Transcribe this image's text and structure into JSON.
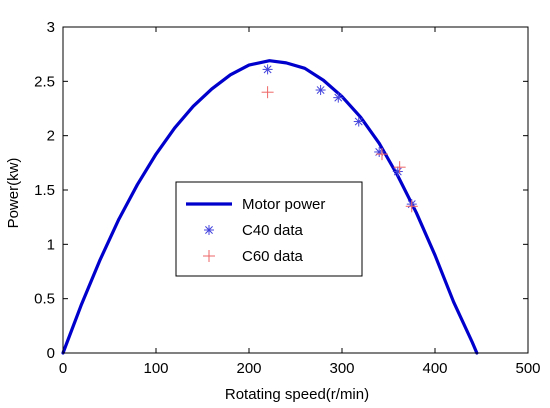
{
  "chart_data": {
    "type": "line",
    "title": "",
    "xlabel": "Rotating speed(r/min)",
    "ylabel": "Power(kw)",
    "xlim": [
      0,
      500
    ],
    "ylim": [
      0,
      3
    ],
    "x_ticks": [
      0,
      100,
      200,
      300,
      400,
      500
    ],
    "y_ticks": [
      0,
      0.5,
      1,
      1.5,
      2,
      2.5,
      3
    ],
    "x_tick_labels": [
      "0",
      "100",
      "200",
      "300",
      "400",
      "500"
    ],
    "y_tick_labels": [
      "0",
      "0.5",
      "1",
      "1.5",
      "2",
      "2.5",
      "3"
    ],
    "grid": false,
    "legend_position": "center-left",
    "series": [
      {
        "name": "Motor power",
        "kind": "line",
        "color": "#0000CC",
        "x": [
          0,
          20,
          40,
          60,
          80,
          100,
          120,
          140,
          160,
          180,
          200,
          222,
          240,
          260,
          280,
          300,
          320,
          340,
          360,
          380,
          400,
          420,
          440,
          445
        ],
        "y": [
          0,
          0.45,
          0.86,
          1.23,
          1.55,
          1.83,
          2.07,
          2.27,
          2.43,
          2.56,
          2.65,
          2.69,
          2.67,
          2.62,
          2.51,
          2.36,
          2.17,
          1.93,
          1.63,
          1.29,
          0.9,
          0.47,
          0.1,
          0
        ]
      },
      {
        "name": "C40 data",
        "kind": "scatter",
        "marker": "asterisk",
        "color": "#4444DD",
        "x": [
          220,
          277,
          296,
          318,
          340,
          360,
          375
        ],
        "y": [
          2.61,
          2.42,
          2.35,
          2.13,
          1.85,
          1.67,
          1.37
        ]
      },
      {
        "name": "C60 data",
        "kind": "scatter",
        "marker": "plus",
        "color": "#EE6666",
        "x": [
          220,
          343,
          362,
          375
        ],
        "y": [
          2.4,
          1.83,
          1.71,
          1.35
        ]
      }
    ]
  }
}
